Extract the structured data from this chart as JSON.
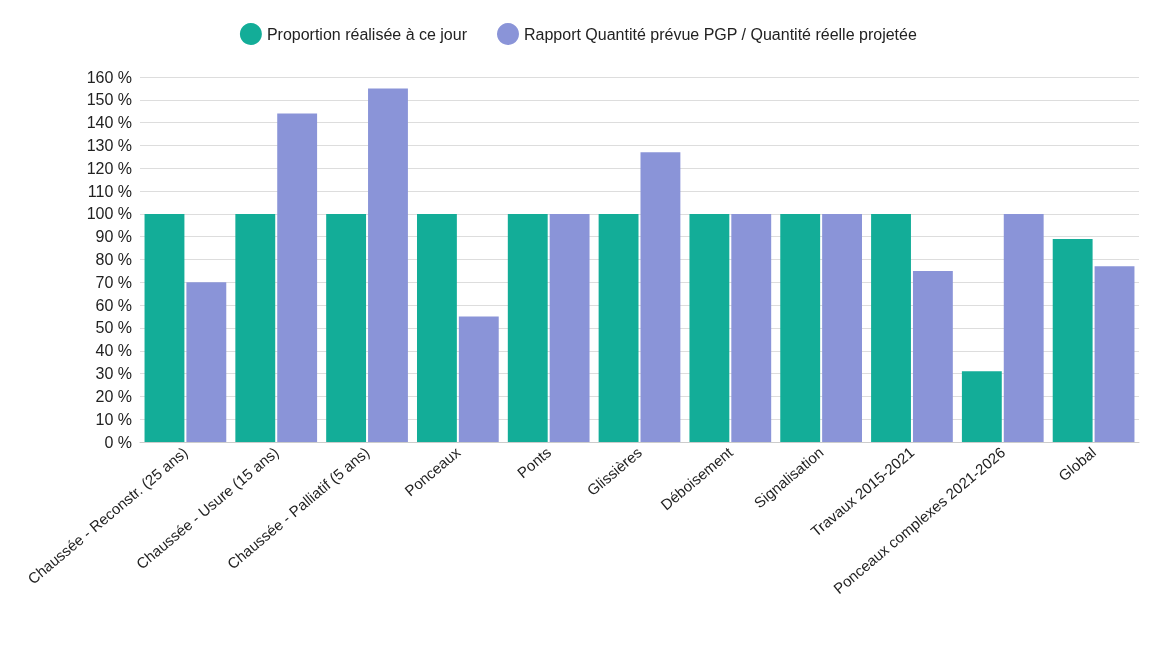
{
  "chart_data": {
    "type": "bar",
    "categories": [
      "Chaussée - Reconstr. (25 ans)",
      "Chaussée - Usure (15 ans)",
      "Chaussée - Palliatif (5 ans)",
      "Ponceaux",
      "Ponts",
      "Glissières",
      "Déboisement",
      "Signalisation",
      "Travaux 2015-2021",
      "Ponceaux complexes 2021-2026",
      "Global"
    ],
    "series": [
      {
        "name": "Proportion réalisée à ce jour",
        "color": "#13ad98",
        "values": [
          100,
          100,
          100,
          100,
          100,
          100,
          100,
          100,
          100,
          31,
          89
        ]
      },
      {
        "name": "Rapport Quantité prévue PGP / Quantité réelle projetée",
        "color": "#8a94d8",
        "values": [
          70,
          144,
          155,
          55,
          100,
          127,
          100,
          100,
          75,
          100,
          77
        ]
      }
    ],
    "ylim": [
      0,
      160
    ],
    "yticks": [
      {
        "value": 0,
        "label": "0 %"
      },
      {
        "value": 10,
        "label": "10 %"
      },
      {
        "value": 20,
        "label": "20 %"
      },
      {
        "value": 30,
        "label": "30 %"
      },
      {
        "value": 40,
        "label": "40 %"
      },
      {
        "value": 50,
        "label": "50 %"
      },
      {
        "value": 60,
        "label": "60 %"
      },
      {
        "value": 70,
        "label": "70 %"
      },
      {
        "value": 80,
        "label": "80 %"
      },
      {
        "value": 90,
        "label": "90 %"
      },
      {
        "value": 100,
        "label": "100 %"
      },
      {
        "value": 110,
        "label": "110 %"
      },
      {
        "value": 120,
        "label": "120 %"
      },
      {
        "value": 130,
        "label": "130 %"
      },
      {
        "value": 140,
        "label": "140 %"
      },
      {
        "value": 150,
        "label": "150 %"
      },
      {
        "value": 160,
        "label": "160 %"
      }
    ],
    "grid": "y",
    "legend": "top"
  }
}
